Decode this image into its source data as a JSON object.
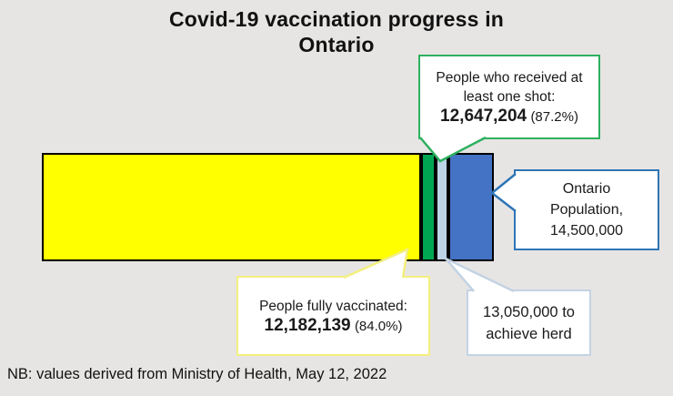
{
  "title": {
    "line1": "Covid-19 vaccination progress in",
    "line2": "Ontario"
  },
  "note": "NB: values derived from Ministry of Health, May 12, 2022",
  "callouts": {
    "one_shot": {
      "line1": "People who received at",
      "line2": "least one shot:",
      "value": "12,647,204",
      "pct": "(87.2%)",
      "border_color": "#2db05f"
    },
    "fully_vaccinated": {
      "line1": "People fully vaccinated:",
      "value": "12,182,139",
      "pct": "(84.0%)",
      "border_color": "#f3ef7f"
    },
    "population": {
      "line1": "Ontario",
      "line2": "Population,",
      "line3": "14,500,000",
      "border_color": "#2e75b6"
    },
    "herd": {
      "line1": "13,050,000 to",
      "line2": "achieve herd",
      "border_color": "#c3d3e3"
    }
  },
  "chart_data": {
    "type": "bar",
    "orientation": "horizontal-stacked",
    "title": "Covid-19 vaccination progress in Ontario",
    "total_population": 14500000,
    "axis": "single stacked bar, 0 to 14,500,000 (100%)",
    "segments": [
      {
        "id": "fully-vaccinated",
        "label": "People fully vaccinated",
        "cumulative_value": 12182139,
        "cumulative_percent": 84.0,
        "color": "#ffff00"
      },
      {
        "id": "one-shot",
        "label": "People who received at least one shot",
        "cumulative_value": 12647204,
        "cumulative_percent": 87.2,
        "color": "#00a651"
      },
      {
        "id": "herd-threshold",
        "label": "13,050,000 to achieve herd",
        "cumulative_value": 13050000,
        "cumulative_percent": 90.0,
        "color": "#bdd4e7"
      },
      {
        "id": "ontario-population",
        "label": "Ontario Population",
        "cumulative_value": 14500000,
        "cumulative_percent": 100.0,
        "color": "#4472c4"
      }
    ],
    "source_note": "NB: values derived from Ministry of Health, May 12, 2022"
  }
}
